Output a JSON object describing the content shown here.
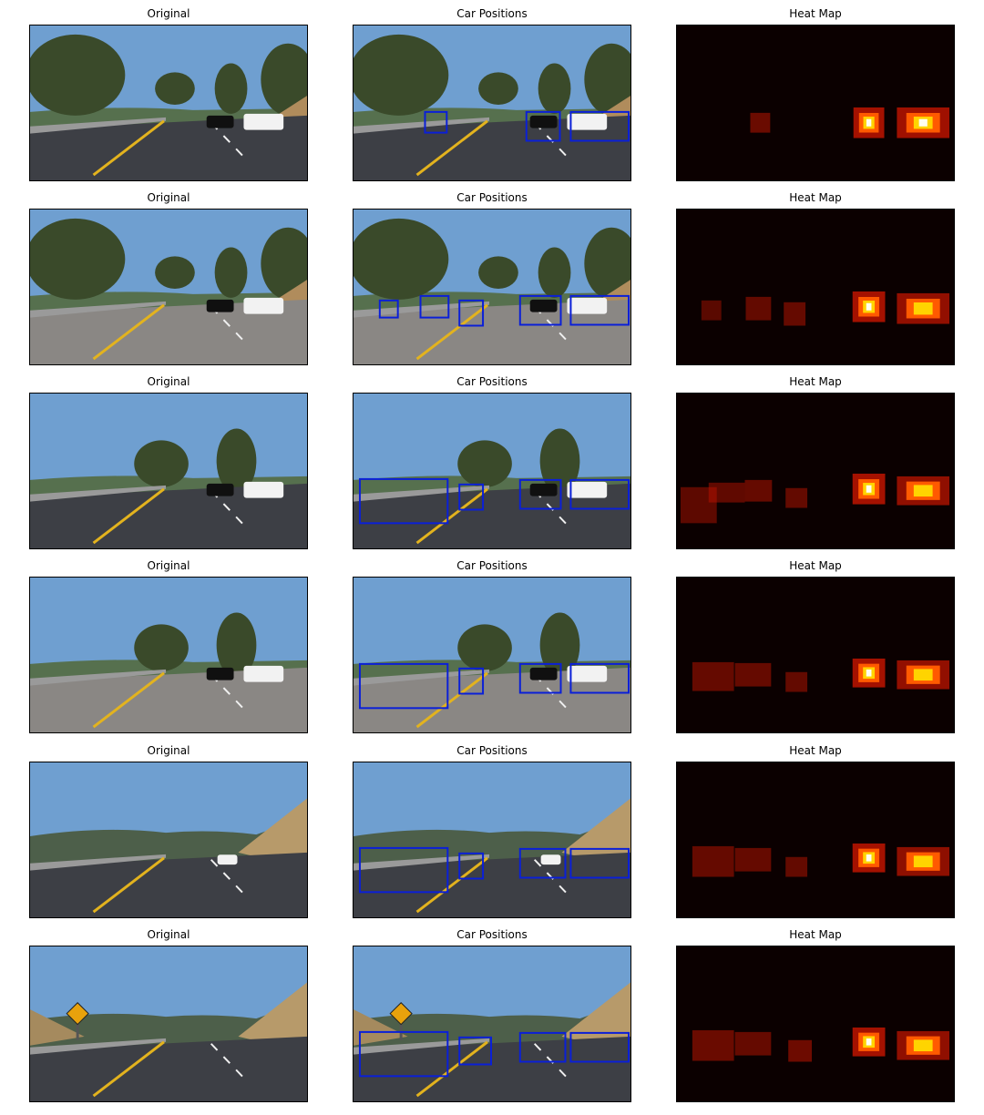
{
  "figure": {
    "rows": 6,
    "col_titles": [
      "Original",
      "Car Positions",
      "Heat Map"
    ],
    "scenes": [
      {
        "variant": "trees",
        "road": "dark",
        "cars": 2,
        "sign": false,
        "boxes": 3,
        "heat_blobs": 3
      },
      {
        "variant": "trees",
        "road": "light",
        "cars": 2,
        "sign": false,
        "boxes": 5,
        "heat_blobs": 5
      },
      {
        "variant": "bridge",
        "road": "dark",
        "cars": 2,
        "sign": false,
        "boxes": 4,
        "heat_blobs": 5
      },
      {
        "variant": "bridge",
        "road": "light",
        "cars": 2,
        "sign": false,
        "boxes": 4,
        "heat_blobs": 4
      },
      {
        "variant": "hills",
        "road": "dark",
        "cars": 1,
        "sign": false,
        "boxes": 4,
        "heat_blobs": 4
      },
      {
        "variant": "hills",
        "road": "dark",
        "cars": 0,
        "sign": true,
        "boxes": 4,
        "heat_blobs": 4
      }
    ]
  },
  "colors": {
    "sky": "#6f9fd0",
    "road_dark": "#3d3f45",
    "road_light": "#8a8784",
    "lane_yellow": "#e3b31e",
    "box_blue": "#0a1fd8",
    "heat_bg": "#0b0000",
    "heat_mid": "#c01400",
    "heat_hot": "#ffd400",
    "heat_core": "#fffef0"
  }
}
